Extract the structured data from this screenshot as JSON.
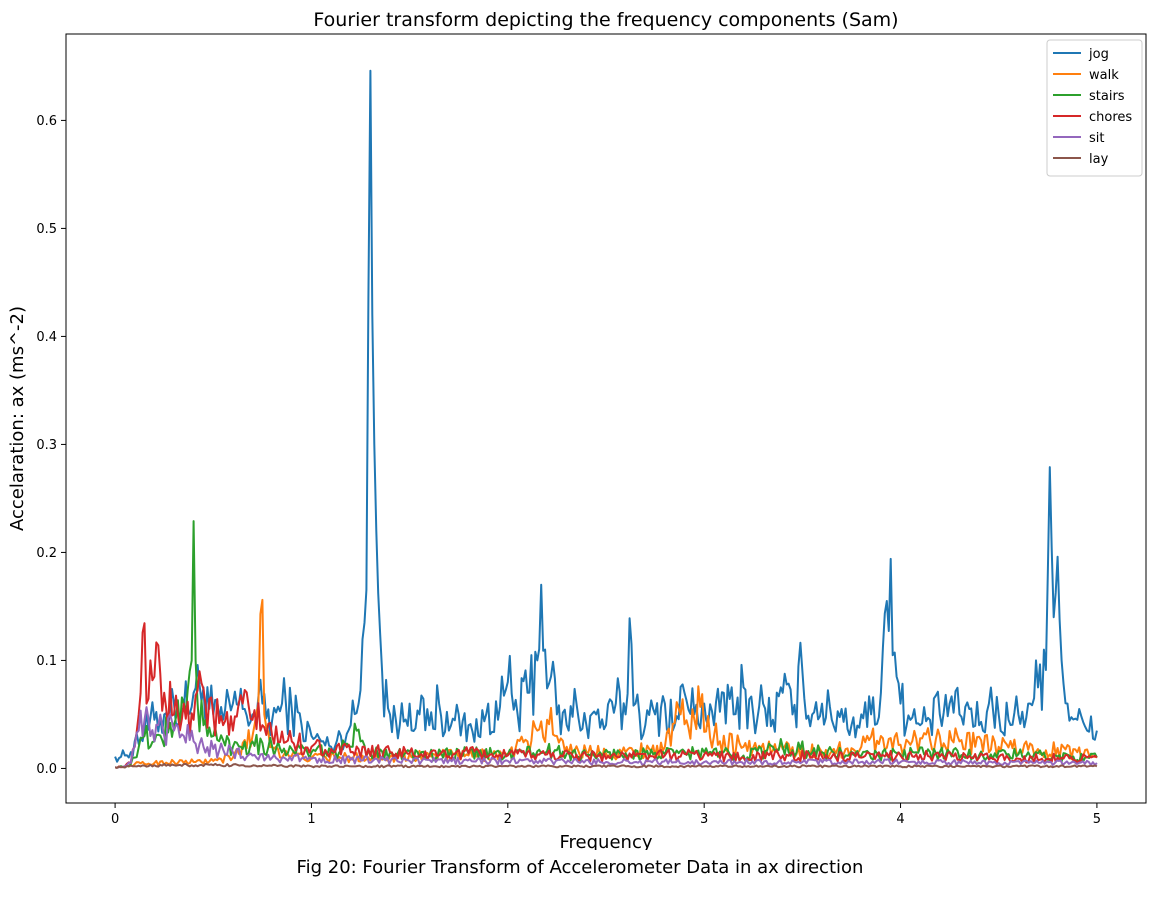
{
  "chart_data": {
    "type": "line",
    "title": "Fourier transform depicting the frequency components (Sam)",
    "xlabel": "Frequency",
    "ylabel": "Accelaration: ax (ms^-2)",
    "xlim": [
      -0.25,
      5.25
    ],
    "ylim": [
      -0.032,
      0.68
    ],
    "xticks": [
      0,
      1,
      2,
      3,
      4,
      5
    ],
    "yticks": [
      0.0,
      0.1,
      0.2,
      0.3,
      0.4,
      0.5,
      0.6
    ],
    "xtick_labels": [
      "0",
      "1",
      "2",
      "3",
      "4",
      "5"
    ],
    "ytick_labels": [
      "0.0",
      "0.1",
      "0.2",
      "0.3",
      "0.4",
      "0.5",
      "0.6"
    ],
    "grid": false,
    "legend_position": "top-right",
    "series": [
      {
        "name": "jog",
        "color": "#1f77b4",
        "x": [
          0,
          0.05,
          0.08,
          0.1,
          0.15,
          0.2,
          0.25,
          0.3,
          0.35,
          0.4,
          0.45,
          0.5,
          0.55,
          0.6,
          0.65,
          0.7,
          0.75,
          0.8,
          0.85,
          0.9,
          0.95,
          1.0,
          1.05,
          1.1,
          1.15,
          1.2,
          1.24,
          1.27,
          1.29,
          1.3,
          1.31,
          1.32,
          1.33,
          1.36,
          1.4,
          1.45,
          1.5,
          1.55,
          1.6,
          1.65,
          1.7,
          1.75,
          1.8,
          1.85,
          1.9,
          1.95,
          2.0,
          2.05,
          2.1,
          2.15,
          2.17,
          2.19,
          2.22,
          2.25,
          2.3,
          2.35,
          2.4,
          2.45,
          2.5,
          2.55,
          2.6,
          2.62,
          2.65,
          2.7,
          2.75,
          2.8,
          2.85,
          2.9,
          2.95,
          3.0,
          3.05,
          3.1,
          3.15,
          3.2,
          3.25,
          3.3,
          3.35,
          3.4,
          3.45,
          3.5,
          3.55,
          3.6,
          3.65,
          3.7,
          3.75,
          3.8,
          3.85,
          3.9,
          3.93,
          3.95,
          3.98,
          4.0,
          4.05,
          4.1,
          4.15,
          4.2,
          4.25,
          4.3,
          4.35,
          4.4,
          4.45,
          4.5,
          4.55,
          4.6,
          4.65,
          4.7,
          4.73,
          4.75,
          4.76,
          4.78,
          4.8,
          4.82,
          4.85,
          4.9,
          4.95,
          5.0
        ],
        "y": [
          0.011,
          0.012,
          0.015,
          0.025,
          0.035,
          0.045,
          0.05,
          0.06,
          0.055,
          0.07,
          0.075,
          0.05,
          0.045,
          0.06,
          0.055,
          0.05,
          0.06,
          0.045,
          0.06,
          0.055,
          0.04,
          0.03,
          0.025,
          0.02,
          0.03,
          0.04,
          0.06,
          0.135,
          0.435,
          0.646,
          0.42,
          0.3,
          0.22,
          0.09,
          0.05,
          0.04,
          0.06,
          0.05,
          0.04,
          0.06,
          0.035,
          0.05,
          0.04,
          0.03,
          0.06,
          0.045,
          0.08,
          0.05,
          0.07,
          0.1,
          0.17,
          0.11,
          0.085,
          0.05,
          0.04,
          0.06,
          0.04,
          0.05,
          0.04,
          0.06,
          0.05,
          0.139,
          0.06,
          0.04,
          0.05,
          0.06,
          0.04,
          0.07,
          0.05,
          0.06,
          0.04,
          0.07,
          0.05,
          0.075,
          0.05,
          0.06,
          0.045,
          0.07,
          0.05,
          0.09,
          0.05,
          0.06,
          0.045,
          0.055,
          0.04,
          0.05,
          0.05,
          0.07,
          0.155,
          0.194,
          0.085,
          0.06,
          0.045,
          0.04,
          0.045,
          0.05,
          0.06,
          0.05,
          0.055,
          0.04,
          0.06,
          0.05,
          0.045,
          0.05,
          0.06,
          0.075,
          0.11,
          0.18,
          0.279,
          0.14,
          0.196,
          0.1,
          0.06,
          0.045,
          0.035,
          0.035
        ]
      },
      {
        "name": "walk",
        "color": "#ff7f0e",
        "x": [
          0,
          0.05,
          0.08,
          0.1,
          0.2,
          0.3,
          0.4,
          0.5,
          0.6,
          0.7,
          0.73,
          0.74,
          0.75,
          0.76,
          0.8,
          0.9,
          1.0,
          1.2,
          1.4,
          1.6,
          1.8,
          2.0,
          2.1,
          2.15,
          2.2,
          2.25,
          2.3,
          2.4,
          2.6,
          2.8,
          2.88,
          2.95,
          2.98,
          3.05,
          3.2,
          3.4,
          3.6,
          3.8,
          3.9,
          4.0,
          4.1,
          4.2,
          4.3,
          4.5,
          4.7,
          4.9,
          5.0
        ],
        "y": [
          0.001,
          0.002,
          0.003,
          0.004,
          0.005,
          0.006,
          0.006,
          0.007,
          0.01,
          0.03,
          0.06,
          0.143,
          0.156,
          0.05,
          0.02,
          0.012,
          0.01,
          0.01,
          0.011,
          0.012,
          0.012,
          0.013,
          0.025,
          0.035,
          0.045,
          0.03,
          0.02,
          0.015,
          0.015,
          0.02,
          0.05,
          0.045,
          0.057,
          0.03,
          0.02,
          0.018,
          0.015,
          0.02,
          0.03,
          0.022,
          0.028,
          0.03,
          0.025,
          0.02,
          0.018,
          0.015,
          0.012
        ]
      },
      {
        "name": "stairs",
        "color": "#2ca02c",
        "x": [
          0,
          0.05,
          0.08,
          0.1,
          0.15,
          0.2,
          0.3,
          0.35,
          0.38,
          0.39,
          0.4,
          0.41,
          0.42,
          0.45,
          0.5,
          0.6,
          0.7,
          0.8,
          0.9,
          1.0,
          1.1,
          1.2,
          1.23,
          1.25,
          1.3,
          1.4,
          1.6,
          1.8,
          2.0,
          2.2,
          2.4,
          2.6,
          2.8,
          3.0,
          3.2,
          3.4,
          3.6,
          3.8,
          4.0,
          4.2,
          4.4,
          4.6,
          4.8,
          5.0
        ],
        "y": [
          0.001,
          0.002,
          0.004,
          0.01,
          0.03,
          0.025,
          0.04,
          0.06,
          0.09,
          0.1,
          0.229,
          0.1,
          0.06,
          0.04,
          0.03,
          0.02,
          0.025,
          0.02,
          0.018,
          0.015,
          0.015,
          0.02,
          0.035,
          0.025,
          0.015,
          0.015,
          0.012,
          0.014,
          0.013,
          0.016,
          0.012,
          0.014,
          0.013,
          0.015,
          0.012,
          0.02,
          0.015,
          0.012,
          0.013,
          0.015,
          0.012,
          0.013,
          0.011,
          0.01
        ]
      },
      {
        "name": "chores",
        "color": "#d62728",
        "x": [
          0,
          0.05,
          0.08,
          0.1,
          0.12,
          0.14,
          0.16,
          0.18,
          0.2,
          0.25,
          0.3,
          0.35,
          0.4,
          0.43,
          0.46,
          0.5,
          0.55,
          0.6,
          0.65,
          0.7,
          0.75,
          0.8,
          0.9,
          1.0,
          1.1,
          1.2,
          1.4,
          1.6,
          1.8,
          2.0,
          2.2,
          2.4,
          2.6,
          2.8,
          3.0,
          3.2,
          3.4,
          3.6,
          3.8,
          4.0,
          4.2,
          4.4,
          4.6,
          4.8,
          5.0
        ],
        "y": [
          0.001,
          0.002,
          0.005,
          0.02,
          0.05,
          0.126,
          0.06,
          0.1,
          0.085,
          0.07,
          0.05,
          0.06,
          0.045,
          0.09,
          0.06,
          0.05,
          0.04,
          0.035,
          0.06,
          0.045,
          0.04,
          0.03,
          0.025,
          0.02,
          0.018,
          0.015,
          0.015,
          0.012,
          0.014,
          0.012,
          0.013,
          0.012,
          0.011,
          0.012,
          0.013,
          0.01,
          0.012,
          0.011,
          0.01,
          0.012,
          0.011,
          0.01,
          0.009,
          0.01,
          0.01
        ]
      },
      {
        "name": "sit",
        "color": "#9467bd",
        "x": [
          0,
          0.05,
          0.08,
          0.1,
          0.12,
          0.15,
          0.18,
          0.2,
          0.22,
          0.25,
          0.28,
          0.3,
          0.35,
          0.4,
          0.45,
          0.5,
          0.6,
          0.7,
          0.8,
          1.0,
          1.2,
          1.5,
          2.0,
          2.5,
          3.0,
          3.5,
          4.0,
          4.5,
          5.0
        ],
        "y": [
          0.001,
          0.002,
          0.005,
          0.02,
          0.035,
          0.045,
          0.03,
          0.025,
          0.04,
          0.03,
          0.05,
          0.035,
          0.03,
          0.025,
          0.02,
          0.018,
          0.015,
          0.012,
          0.01,
          0.009,
          0.008,
          0.007,
          0.007,
          0.006,
          0.006,
          0.006,
          0.006,
          0.005,
          0.005
        ]
      },
      {
        "name": "lay",
        "color": "#8c564b",
        "x": [
          0,
          0.1,
          0.2,
          0.3,
          0.5,
          1.0,
          2.0,
          3.0,
          4.0,
          5.0
        ],
        "y": [
          0.001,
          0.002,
          0.003,
          0.003,
          0.003,
          0.002,
          0.002,
          0.002,
          0.002,
          0.002
        ]
      }
    ]
  },
  "caption": "Fig 20: Fourier Transform of Accelerometer Data in ax direction"
}
